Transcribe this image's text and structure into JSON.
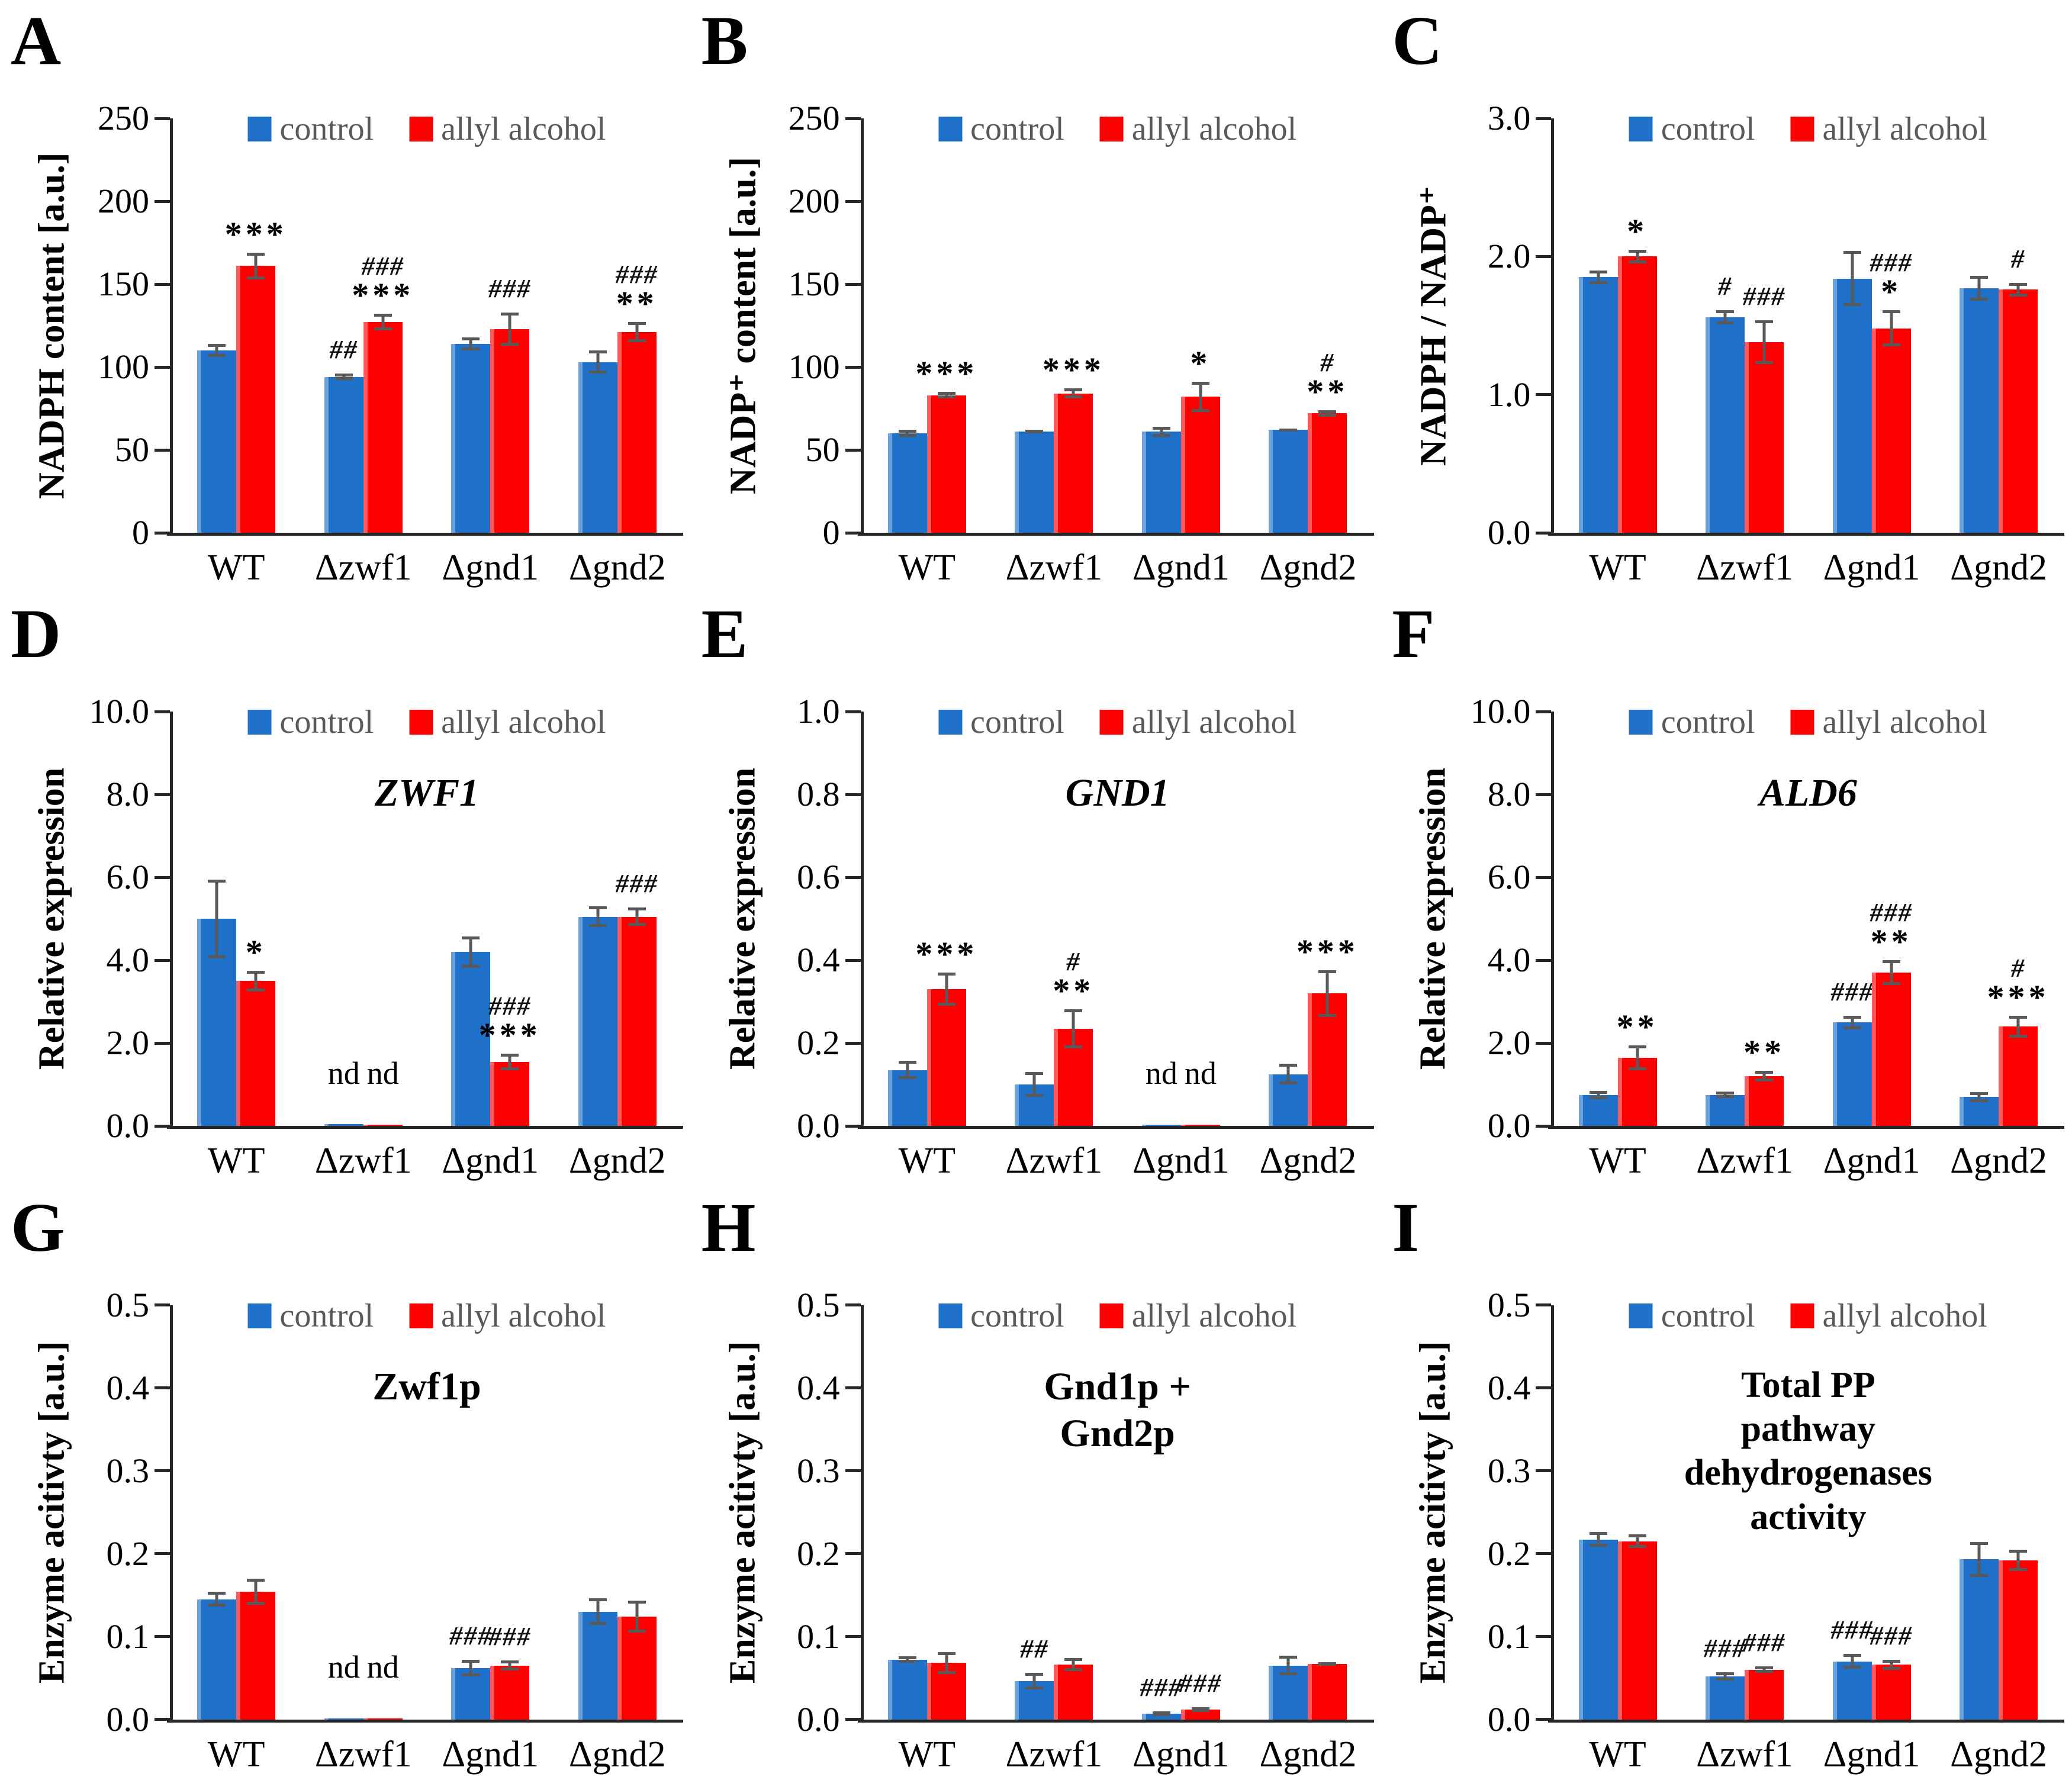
{
  "figure_title": "",
  "chart_data": {
    "type": "bar",
    "grid": {
      "rows": 3,
      "cols": 3
    },
    "categories": [
      "WT",
      "Δzwf1",
      "Δgnd1",
      "Δgnd2"
    ],
    "series_meta": [
      {
        "name": "control",
        "color": "#1E70C8"
      },
      {
        "name": "allyl alcohol",
        "color": "#FF0000"
      }
    ],
    "colors": {
      "control_bar": "#1E70C8",
      "allyl_alcohol_bar": "#FF0000",
      "error_bar": "#595959",
      "legend_text": "#595959",
      "axis": "#262626"
    },
    "legend_position": "top-center",
    "nd_label": "nd",
    "panels": [
      {
        "letter": "A",
        "title": "",
        "title_italic": false,
        "ylabel": "NADPH content [a.u.]",
        "ylim": [
          0,
          250
        ],
        "yticks": [
          "0",
          "50",
          "100",
          "150",
          "200",
          "250"
        ],
        "nd_category_index": null,
        "series": [
          {
            "name": "control",
            "values": [
              110,
              94,
              114,
              103
            ],
            "errors": [
              4,
              2,
              4,
              7
            ],
            "annotations": [
              [],
              [
                "##"
              ],
              [],
              []
            ]
          },
          {
            "name": "allyl alcohol",
            "values": [
              161,
              127,
              123,
              121
            ],
            "errors": [
              8,
              5,
              10,
              6
            ],
            "annotations": [
              [
                "***"
              ],
              [
                "###",
                "***"
              ],
              [
                "###"
              ],
              [
                "###",
                "**"
              ]
            ]
          }
        ]
      },
      {
        "letter": "B",
        "title": "",
        "title_italic": false,
        "ylabel": "NADP⁺ content [a.u.]",
        "ylim": [
          0,
          250
        ],
        "yticks": [
          "0",
          "50",
          "100",
          "150",
          "200",
          "250"
        ],
        "nd_category_index": null,
        "series": [
          {
            "name": "control",
            "values": [
              60,
              61,
              61,
              62
            ],
            "errors": [
              2,
              1,
              3,
              1
            ],
            "annotations": [
              [],
              [],
              [],
              []
            ]
          },
          {
            "name": "allyl alcohol",
            "values": [
              83,
              84,
              82,
              72
            ],
            "errors": [
              2,
              3,
              9,
              2
            ],
            "annotations": [
              [
                "***"
              ],
              [
                "***"
              ],
              [
                "*"
              ],
              [
                "#",
                "**"
              ]
            ]
          }
        ]
      },
      {
        "letter": "C",
        "title": "",
        "title_italic": false,
        "ylabel": "NADPH / NADP⁺",
        "ylim": [
          0,
          3.0
        ],
        "yticks": [
          "0.0",
          "1.0",
          "2.0",
          "3.0"
        ],
        "nd_category_index": null,
        "series": [
          {
            "name": "control",
            "values": [
              1.85,
              1.56,
              1.84,
              1.77
            ],
            "errors": [
              0.05,
              0.05,
              0.2,
              0.09
            ],
            "annotations": [
              [],
              [
                "#"
              ],
              [],
              []
            ]
          },
          {
            "name": "allyl alcohol",
            "values": [
              2.0,
              1.38,
              1.48,
              1.76
            ],
            "errors": [
              0.05,
              0.16,
              0.13,
              0.05
            ],
            "annotations": [
              [
                "*"
              ],
              [
                "###"
              ],
              [
                "###",
                "*"
              ],
              [
                "#"
              ]
            ]
          }
        ]
      },
      {
        "letter": "D",
        "title": "ZWF1",
        "title_italic": true,
        "ylabel": "Relative expression",
        "ylim": [
          0,
          10.0
        ],
        "yticks": [
          "0.0",
          "2.0",
          "4.0",
          "6.0",
          "8.0",
          "10.0"
        ],
        "nd_category_index": 1,
        "series": [
          {
            "name": "control",
            "values": [
              5.0,
              0.05,
              4.2,
              5.05
            ],
            "errors": [
              0.95,
              0,
              0.38,
              0.25
            ],
            "annotations": [
              [],
              [],
              [],
              []
            ]
          },
          {
            "name": "allyl alcohol",
            "values": [
              3.5,
              0.04,
              1.55,
              5.05
            ],
            "errors": [
              0.25,
              0,
              0.2,
              0.22
            ],
            "annotations": [
              [
                "*"
              ],
              [],
              [
                "###",
                "***"
              ],
              [
                "###"
              ]
            ]
          }
        ]
      },
      {
        "letter": "E",
        "title": "GND1",
        "title_italic": true,
        "ylabel": "Relative expression",
        "ylim": [
          0,
          1.0
        ],
        "yticks": [
          "0.0",
          "0.2",
          "0.4",
          "0.6",
          "0.8",
          "1.0"
        ],
        "nd_category_index": 2,
        "series": [
          {
            "name": "control",
            "values": [
              0.135,
              0.1,
              0.003,
              0.125
            ],
            "errors": [
              0.022,
              0.03,
              0,
              0.025
            ],
            "annotations": [
              [],
              [],
              [],
              []
            ]
          },
          {
            "name": "allyl alcohol",
            "values": [
              0.33,
              0.235,
              0.004,
              0.32
            ],
            "errors": [
              0.04,
              0.047,
              0,
              0.056
            ],
            "annotations": [
              [
                "***"
              ],
              [
                "#",
                "**"
              ],
              [],
              [
                "***"
              ]
            ]
          }
        ]
      },
      {
        "letter": "F",
        "title": "ALD6",
        "title_italic": true,
        "ylabel": "Relative expression",
        "ylim": [
          0,
          10.0
        ],
        "yticks": [
          "0.0",
          "2.0",
          "4.0",
          "6.0",
          "8.0",
          "10.0"
        ],
        "nd_category_index": null,
        "series": [
          {
            "name": "control",
            "values": [
              0.75,
              0.75,
              2.5,
              0.7
            ],
            "errors": [
              0.1,
              0.08,
              0.16,
              0.12
            ],
            "annotations": [
              [],
              [],
              [
                "###"
              ],
              []
            ]
          },
          {
            "name": "allyl alcohol",
            "values": [
              1.65,
              1.2,
              3.7,
              2.4
            ],
            "errors": [
              0.3,
              0.13,
              0.3,
              0.26
            ],
            "annotations": [
              [
                "**"
              ],
              [
                "**"
              ],
              [
                "###",
                "**"
              ],
              [
                "#",
                "***"
              ]
            ]
          }
        ]
      },
      {
        "letter": "G",
        "title": "Zwf1p",
        "title_italic": false,
        "ylabel": "Enzyme acitivty [a.u.]",
        "ylim": [
          0,
          0.5
        ],
        "yticks": [
          "0.0",
          "0.1",
          "0.2",
          "0.3",
          "0.4",
          "0.5"
        ],
        "nd_category_index": 1,
        "series": [
          {
            "name": "control",
            "values": [
              0.145,
              0.0015,
              0.062,
              0.13
            ],
            "errors": [
              0.009,
              0,
              0.01,
              0.016
            ],
            "annotations": [
              [],
              [],
              [
                "###"
              ],
              []
            ]
          },
          {
            "name": "allyl alcohol",
            "values": [
              0.154,
              0.0015,
              0.065,
              0.124
            ],
            "errors": [
              0.016,
              0,
              0.006,
              0.019
            ],
            "annotations": [
              [],
              [],
              [
                "###"
              ],
              []
            ]
          }
        ]
      },
      {
        "letter": "H",
        "title": "Gnd1p + Gnd2p",
        "title_italic": false,
        "ylabel": "Enzyme acitivty [a.u.]",
        "ylim": [
          0,
          0.5
        ],
        "yticks": [
          "0.0",
          "0.1",
          "0.2",
          "0.3",
          "0.4",
          "0.5"
        ],
        "nd_category_index": null,
        "series": [
          {
            "name": "control",
            "values": [
              0.072,
              0.046,
              0.007,
              0.065
            ],
            "errors": [
              0.004,
              0.01,
              0.003,
              0.012
            ],
            "annotations": [
              [],
              [
                "##"
              ],
              [
                "###"
              ],
              []
            ]
          },
          {
            "name": "allyl alcohol",
            "values": [
              0.068,
              0.066,
              0.012,
              0.067
            ],
            "errors": [
              0.013,
              0.008,
              0.003,
              0.002
            ],
            "annotations": [
              [],
              [],
              [
                "###"
              ],
              []
            ]
          }
        ]
      },
      {
        "letter": "I",
        "title": "Total PP pathway\ndehydrogenases activity",
        "title_italic": false,
        "ylabel": "Enzyme acitivty [a.u.]",
        "ylim": [
          0,
          0.5
        ],
        "yticks": [
          "0.0",
          "0.1",
          "0.2",
          "0.3",
          "0.4",
          "0.5"
        ],
        "nd_category_index": null,
        "series": [
          {
            "name": "control",
            "values": [
              0.217,
              0.052,
              0.07,
              0.193
            ],
            "errors": [
              0.009,
              0.005,
              0.009,
              0.021
            ],
            "annotations": [
              [],
              [
                "###"
              ],
              [
                "###"
              ],
              []
            ]
          },
          {
            "name": "allyl alcohol",
            "values": [
              0.215,
              0.06,
              0.066,
              0.192
            ],
            "errors": [
              0.008,
              0.004,
              0.006,
              0.013
            ],
            "annotations": [
              [],
              [
                "###"
              ],
              [
                "###"
              ],
              []
            ]
          }
        ]
      }
    ]
  }
}
